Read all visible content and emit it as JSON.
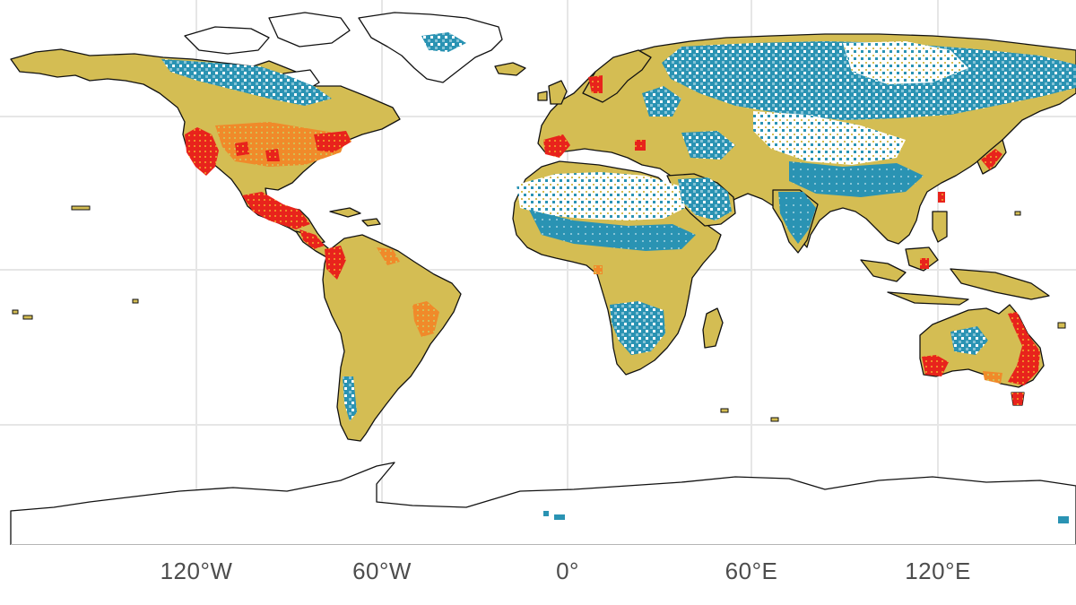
{
  "map": {
    "projection": "equirectangular",
    "gridlines": true,
    "colors": {
      "background": "#ffffff",
      "grid": "#e6e6e6",
      "outline": "#111111",
      "base_land": "#d4bd53",
      "blue": "#2a93b3",
      "light_blue": "#86c3d6",
      "orange": "#f08a2a",
      "red": "#e8231c",
      "white": "#ffffff"
    },
    "x_ticks": [
      {
        "label": "120°W",
        "lon": -120
      },
      {
        "label": "60°W",
        "lon": -60
      },
      {
        "label": "0°",
        "lon": 0
      },
      {
        "label": "60°E",
        "lon": 60
      },
      {
        "label": "120°E",
        "lon": 120
      }
    ],
    "y_gridlines_lat": [
      60,
      30,
      0,
      -30,
      -60
    ]
  }
}
